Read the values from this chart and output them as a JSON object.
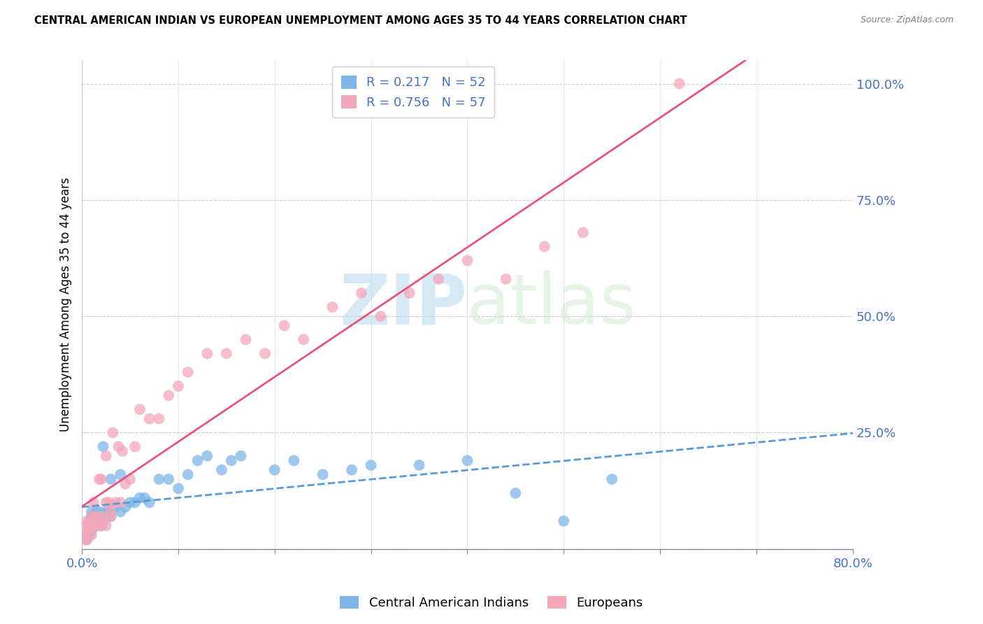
{
  "title": "CENTRAL AMERICAN INDIAN VS EUROPEAN UNEMPLOYMENT AMONG AGES 35 TO 44 YEARS CORRELATION CHART",
  "source": "Source: ZipAtlas.com",
  "ylabel": "Unemployment Among Ages 35 to 44 years",
  "xlim": [
    0.0,
    0.8
  ],
  "ylim": [
    0.0,
    1.05
  ],
  "xtick_positions": [
    0.0,
    0.1,
    0.2,
    0.3,
    0.4,
    0.5,
    0.6,
    0.7,
    0.8
  ],
  "xticklabels": [
    "0.0%",
    "",
    "",
    "",
    "",
    "",
    "",
    "",
    "80.0%"
  ],
  "ytick_positions": [
    0.0,
    0.25,
    0.5,
    0.75,
    1.0
  ],
  "yticklabels": [
    "",
    "25.0%",
    "50.0%",
    "75.0%",
    "100.0%"
  ],
  "blue_R": 0.217,
  "blue_N": 52,
  "pink_R": 0.756,
  "pink_N": 57,
  "blue_color": "#7eb6e8",
  "pink_color": "#f4a7b9",
  "blue_line_color": "#5b9bd5",
  "pink_line_color": "#e8537a",
  "label_color": "#4472c4",
  "watermark_zip": "ZIP",
  "watermark_atlas": "atlas",
  "legend_label_blue": "Central American Indians",
  "legend_label_pink": "Europeans",
  "blue_scatter_x": [
    0.005,
    0.008,
    0.008,
    0.01,
    0.01,
    0.01,
    0.01,
    0.01,
    0.012,
    0.012,
    0.015,
    0.015,
    0.015,
    0.015,
    0.018,
    0.018,
    0.02,
    0.022,
    0.022,
    0.025,
    0.025,
    0.028,
    0.03,
    0.03,
    0.035,
    0.04,
    0.04,
    0.045,
    0.05,
    0.055,
    0.06,
    0.065,
    0.07,
    0.08,
    0.09,
    0.1,
    0.11,
    0.12,
    0.13,
    0.145,
    0.155,
    0.165,
    0.2,
    0.22,
    0.25,
    0.28,
    0.3,
    0.35,
    0.4,
    0.45,
    0.5,
    0.55
  ],
  "blue_scatter_y": [
    0.02,
    0.03,
    0.06,
    0.04,
    0.05,
    0.06,
    0.07,
    0.08,
    0.05,
    0.07,
    0.05,
    0.06,
    0.07,
    0.08,
    0.06,
    0.08,
    0.05,
    0.07,
    0.22,
    0.07,
    0.08,
    0.08,
    0.07,
    0.15,
    0.09,
    0.08,
    0.16,
    0.09,
    0.1,
    0.1,
    0.11,
    0.11,
    0.1,
    0.15,
    0.15,
    0.13,
    0.16,
    0.19,
    0.2,
    0.17,
    0.19,
    0.2,
    0.17,
    0.19,
    0.16,
    0.17,
    0.18,
    0.18,
    0.19,
    0.12,
    0.06,
    0.15
  ],
  "pink_scatter_x": [
    0.003,
    0.005,
    0.005,
    0.005,
    0.005,
    0.005,
    0.007,
    0.008,
    0.01,
    0.01,
    0.01,
    0.012,
    0.012,
    0.012,
    0.015,
    0.015,
    0.018,
    0.02,
    0.02,
    0.02,
    0.022,
    0.025,
    0.025,
    0.025,
    0.028,
    0.03,
    0.03,
    0.032,
    0.035,
    0.038,
    0.04,
    0.042,
    0.045,
    0.05,
    0.055,
    0.06,
    0.07,
    0.08,
    0.09,
    0.1,
    0.11,
    0.13,
    0.15,
    0.17,
    0.19,
    0.21,
    0.23,
    0.26,
    0.29,
    0.31,
    0.34,
    0.37,
    0.4,
    0.44,
    0.48,
    0.52,
    0.62
  ],
  "pink_scatter_y": [
    0.02,
    0.02,
    0.03,
    0.04,
    0.05,
    0.06,
    0.04,
    0.05,
    0.03,
    0.05,
    0.07,
    0.05,
    0.06,
    0.1,
    0.05,
    0.07,
    0.15,
    0.05,
    0.07,
    0.15,
    0.06,
    0.05,
    0.1,
    0.2,
    0.1,
    0.07,
    0.08,
    0.25,
    0.1,
    0.22,
    0.1,
    0.21,
    0.14,
    0.15,
    0.22,
    0.3,
    0.28,
    0.28,
    0.33,
    0.35,
    0.38,
    0.42,
    0.42,
    0.45,
    0.42,
    0.48,
    0.45,
    0.52,
    0.55,
    0.5,
    0.55,
    0.58,
    0.62,
    0.58,
    0.65,
    0.68,
    1.0
  ]
}
